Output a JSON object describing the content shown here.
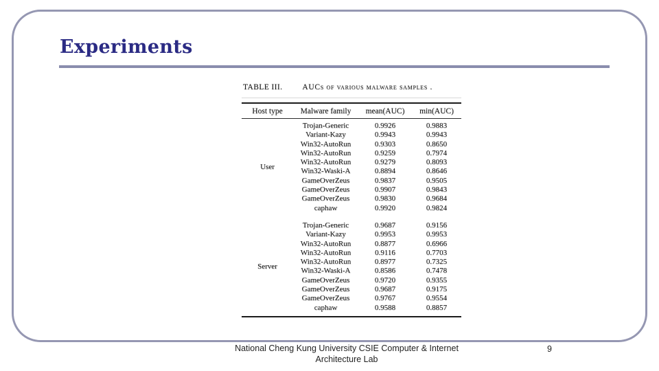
{
  "slide": {
    "title": "Experiments",
    "page_number": "9",
    "footer_line1": "National Cheng Kung University CSIE Computer & Internet",
    "footer_line2": "Architecture Lab"
  },
  "colors": {
    "frame_border": "#9597B2",
    "title_text": "#2B2B84",
    "title_underline": "#8A8DAD",
    "table_text": "#1c1c1c"
  },
  "table": {
    "caption_label": "TABLE III.",
    "caption_title": "AUCs of various malware samples .",
    "columns": [
      "Host type",
      "Malware family",
      "mean(AUC)",
      "min(AUC)"
    ],
    "sections": [
      {
        "host": "User",
        "rows": [
          {
            "family": "Trojan-Generic",
            "mean": "0.9926",
            "min": "0.9883"
          },
          {
            "family": "Variant-Kazy",
            "mean": "0.9943",
            "min": "0.9943"
          },
          {
            "family": "Win32-AutoRun",
            "mean": "0.9303",
            "min": "0.8650"
          },
          {
            "family": "Win32-AutoRun",
            "mean": "0.9259",
            "min": "0.7974"
          },
          {
            "family": "Win32-AutoRun",
            "mean": "0.9279",
            "min": "0.8093"
          },
          {
            "family": "Win32-Waski-A",
            "mean": "0.8894",
            "min": "0.8646"
          },
          {
            "family": "GameOverZeus",
            "mean": "0.9837",
            "min": "0.9505"
          },
          {
            "family": "GameOverZeus",
            "mean": "0.9907",
            "min": "0.9843"
          },
          {
            "family": "GameOverZeus",
            "mean": "0.9830",
            "min": "0.9684"
          },
          {
            "family": "caphaw",
            "mean": "0.9920",
            "min": "0.9824"
          }
        ]
      },
      {
        "host": "Server",
        "rows": [
          {
            "family": "Trojan-Generic",
            "mean": "0.9687",
            "min": "0.9156"
          },
          {
            "family": "Variant-Kazy",
            "mean": "0.9953",
            "min": "0.9953"
          },
          {
            "family": "Win32-AutoRun",
            "mean": "0.8877",
            "min": "0.6966"
          },
          {
            "family": "Win32-AutoRun",
            "mean": "0.9116",
            "min": "0.7703"
          },
          {
            "family": "Win32-AutoRun",
            "mean": "0.8977",
            "min": "0.7325"
          },
          {
            "family": "Win32-Waski-A",
            "mean": "0.8586",
            "min": "0.7478"
          },
          {
            "family": "GameOverZeus",
            "mean": "0.9720",
            "min": "0.9355"
          },
          {
            "family": "GameOverZeus",
            "mean": "0.9687",
            "min": "0.9175"
          },
          {
            "family": "GameOverZeus",
            "mean": "0.9767",
            "min": "0.9554"
          },
          {
            "family": "caphaw",
            "mean": "0.9588",
            "min": "0.8857"
          }
        ]
      }
    ]
  }
}
